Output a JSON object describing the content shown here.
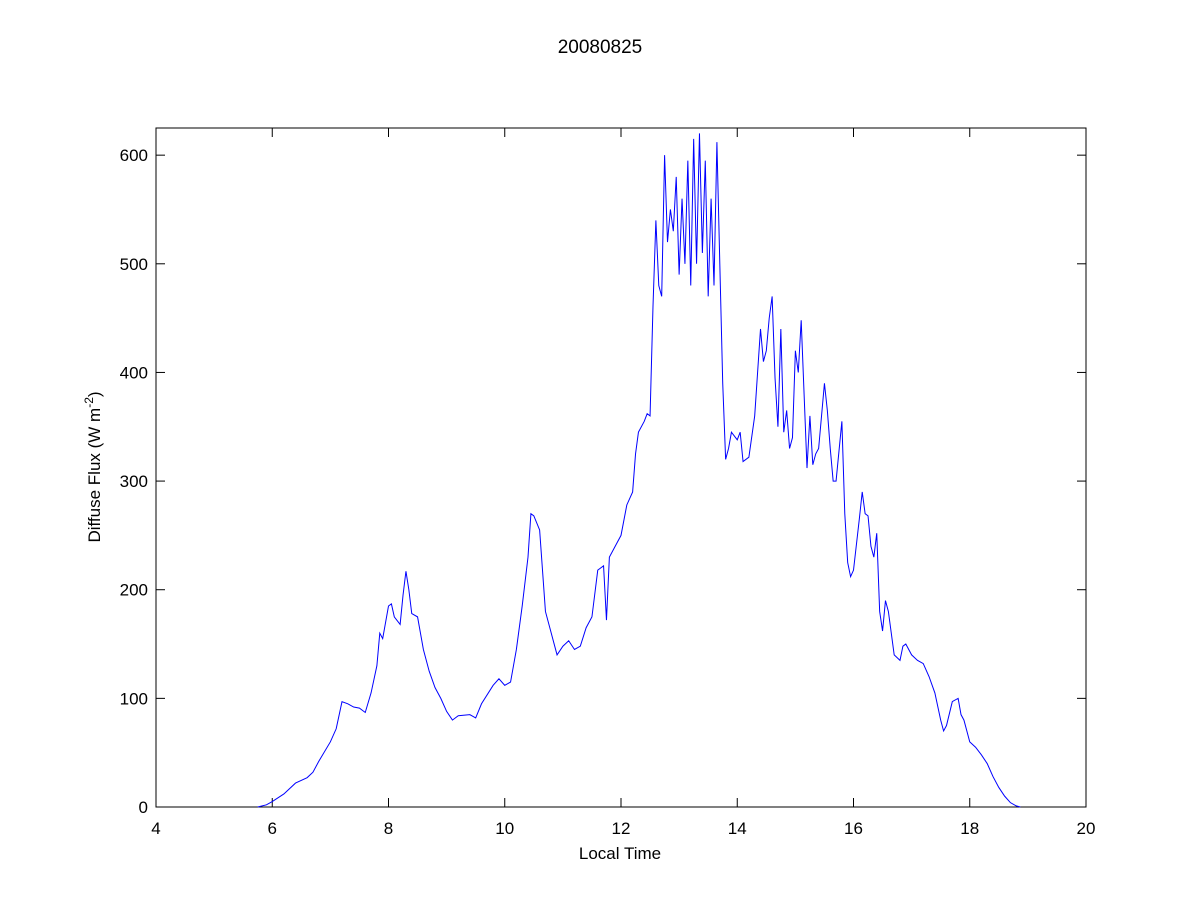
{
  "chart_data": {
    "type": "line",
    "title": "20080825",
    "xlabel": "Local Time",
    "ylabel": {
      "text": "Diffuse Flux (W m",
      "superscript": "-2",
      "suffix": ")"
    },
    "xlim": [
      4,
      20
    ],
    "xticks": [
      4,
      6,
      8,
      10,
      12,
      14,
      16,
      18,
      20
    ],
    "ylim": [
      0,
      625
    ],
    "yticks": [
      0,
      100,
      200,
      300,
      400,
      500,
      600
    ],
    "grid": false,
    "x": [
      5.75,
      5.9,
      6.0,
      6.2,
      6.4,
      6.6,
      6.7,
      6.8,
      7.0,
      7.1,
      7.2,
      7.3,
      7.4,
      7.5,
      7.6,
      7.7,
      7.8,
      7.85,
      7.9,
      8.0,
      8.05,
      8.1,
      8.2,
      8.25,
      8.3,
      8.35,
      8.4,
      8.5,
      8.6,
      8.7,
      8.8,
      8.9,
      9.0,
      9.1,
      9.2,
      9.4,
      9.5,
      9.6,
      9.8,
      9.9,
      10.0,
      10.1,
      10.2,
      10.3,
      10.4,
      10.45,
      10.5,
      10.6,
      10.7,
      10.8,
      10.9,
      11.0,
      11.1,
      11.2,
      11.3,
      11.4,
      11.5,
      11.6,
      11.7,
      11.75,
      11.8,
      11.9,
      12.0,
      12.1,
      12.2,
      12.25,
      12.3,
      12.4,
      12.45,
      12.5,
      12.55,
      12.6,
      12.65,
      12.7,
      12.75,
      12.8,
      12.85,
      12.9,
      12.95,
      13.0,
      13.05,
      13.1,
      13.15,
      13.2,
      13.25,
      13.3,
      13.35,
      13.4,
      13.45,
      13.5,
      13.55,
      13.6,
      13.65,
      13.7,
      13.75,
      13.8,
      13.85,
      13.9,
      14.0,
      14.05,
      14.1,
      14.2,
      14.3,
      14.4,
      14.45,
      14.5,
      14.55,
      14.6,
      14.65,
      14.7,
      14.75,
      14.8,
      14.85,
      14.9,
      14.95,
      15.0,
      15.05,
      15.1,
      15.15,
      15.2,
      15.25,
      15.3,
      15.35,
      15.4,
      15.5,
      15.55,
      15.6,
      15.65,
      15.7,
      15.8,
      15.85,
      15.9,
      15.95,
      16.0,
      16.1,
      16.15,
      16.2,
      16.25,
      16.3,
      16.35,
      16.4,
      16.45,
      16.5,
      16.55,
      16.6,
      16.7,
      16.8,
      16.85,
      16.9,
      17.0,
      17.1,
      17.2,
      17.3,
      17.4,
      17.5,
      17.55,
      17.6,
      17.7,
      17.8,
      17.85,
      17.9,
      18.0,
      18.1,
      18.2,
      18.3,
      18.4,
      18.5,
      18.6,
      18.7,
      18.8,
      18.87
    ],
    "series": [
      {
        "color": "#0000ff",
        "values": [
          0,
          2,
          5,
          12,
          22,
          27,
          32,
          42,
          60,
          72,
          97,
          95,
          92,
          91,
          87,
          105,
          130,
          160,
          155,
          185,
          187,
          175,
          168,
          195,
          217,
          200,
          178,
          175,
          145,
          125,
          110,
          100,
          88,
          80,
          84,
          85,
          82,
          95,
          112,
          118,
          112,
          115,
          145,
          185,
          230,
          270,
          268,
          255,
          180,
          160,
          140,
          148,
          153,
          145,
          148,
          165,
          175,
          218,
          222,
          172,
          230,
          240,
          250,
          278,
          290,
          325,
          345,
          355,
          362,
          360,
          460,
          540,
          480,
          470,
          600,
          520,
          550,
          530,
          580,
          490,
          560,
          500,
          595,
          480,
          615,
          500,
          620,
          510,
          595,
          470,
          560,
          480,
          612,
          500,
          390,
          320,
          330,
          345,
          338,
          345,
          318,
          322,
          360,
          440,
          410,
          420,
          450,
          470,
          395,
          350,
          440,
          345,
          365,
          330,
          340,
          420,
          400,
          448,
          380,
          312,
          360,
          315,
          325,
          330,
          390,
          365,
          330,
          300,
          300,
          355,
          270,
          225,
          212,
          218,
          265,
          290,
          270,
          268,
          240,
          230,
          252,
          180,
          162,
          190,
          180,
          140,
          135,
          148,
          150,
          140,
          135,
          132,
          120,
          105,
          80,
          70,
          75,
          97,
          100,
          85,
          80,
          60,
          55,
          48,
          40,
          28,
          18,
          10,
          4,
          1,
          0
        ]
      }
    ]
  }
}
